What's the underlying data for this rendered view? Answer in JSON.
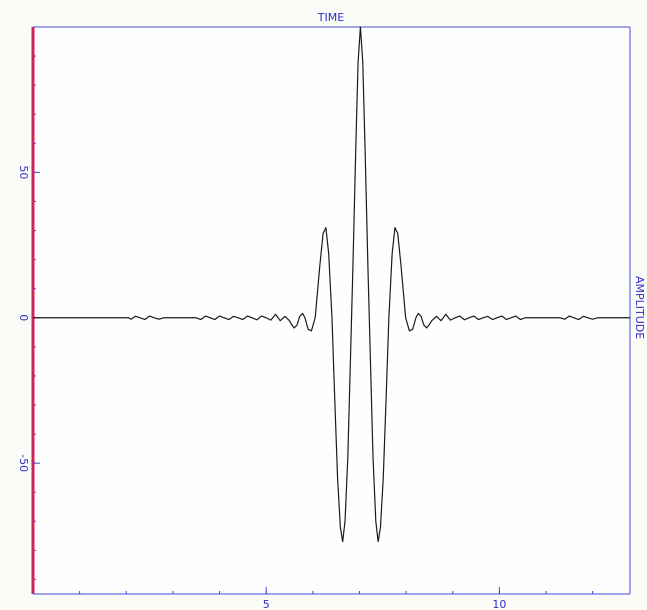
{
  "colors": {
    "page_bg": "#fbfbf7",
    "plot_bg": "#fefefe",
    "frame": "#4848d8",
    "axis_text": "#2f2fc8",
    "left_axis": "#d0215a",
    "trace": "#1a1a1a"
  },
  "chart_data": {
    "type": "line",
    "title": "TIME",
    "ylabel": "AMPLITUDE",
    "xlim": [
      0.0,
      12.8
    ],
    "ylim": [
      -95,
      100
    ],
    "x_ticks": [
      {
        "value": 5,
        "label": "5"
      },
      {
        "value": 10,
        "label": "10"
      }
    ],
    "y_ticks": [
      {
        "value": 50,
        "label": "50"
      },
      {
        "value": 0,
        "label": "0"
      },
      {
        "value": -50,
        "label": "-50"
      }
    ],
    "grid": false,
    "series": [
      {
        "points": [
          [
            0.0,
            0
          ],
          [
            2.05,
            0
          ],
          [
            2.1,
            -0.5
          ],
          [
            2.2,
            0.5
          ],
          [
            2.3,
            0
          ],
          [
            2.4,
            -0.6
          ],
          [
            2.5,
            0.6
          ],
          [
            2.6,
            0
          ],
          [
            2.7,
            -0.5
          ],
          [
            2.8,
            0
          ],
          [
            3.5,
            0
          ],
          [
            3.6,
            -0.6
          ],
          [
            3.7,
            0.6
          ],
          [
            3.8,
            0
          ],
          [
            3.9,
            -0.6
          ],
          [
            4.0,
            0.6
          ],
          [
            4.1,
            0
          ],
          [
            4.2,
            -0.6
          ],
          [
            4.3,
            0.5
          ],
          [
            4.4,
            0
          ],
          [
            4.5,
            -0.6
          ],
          [
            4.6,
            0.6
          ],
          [
            4.7,
            0
          ],
          [
            4.8,
            -0.7
          ],
          [
            4.9,
            0.6
          ],
          [
            5.0,
            0
          ],
          [
            5.1,
            -0.8
          ],
          [
            5.2,
            1.2
          ],
          [
            5.3,
            -1
          ],
          [
            5.4,
            0.5
          ],
          [
            5.5,
            -1
          ],
          [
            5.55,
            -2.5
          ],
          [
            5.6,
            -3.5
          ],
          [
            5.66,
            -2.5
          ],
          [
            5.72,
            0.5
          ],
          [
            5.78,
            1.5
          ],
          [
            5.83,
            0
          ],
          [
            5.9,
            -4
          ],
          [
            5.97,
            -4.5
          ],
          [
            6.05,
            0
          ],
          [
            6.15,
            18
          ],
          [
            6.22,
            29
          ],
          [
            6.28,
            31
          ],
          [
            6.34,
            22
          ],
          [
            6.41,
            0
          ],
          [
            6.47,
            -28
          ],
          [
            6.53,
            -55
          ],
          [
            6.59,
            -72
          ],
          [
            6.64,
            -77
          ],
          [
            6.69,
            -70
          ],
          [
            6.75,
            -48
          ],
          [
            6.8,
            -18
          ],
          [
            6.86,
            18
          ],
          [
            6.92,
            58
          ],
          [
            6.97,
            88
          ],
          [
            7.02,
            100
          ],
          [
            7.07,
            88
          ],
          [
            7.12,
            58
          ],
          [
            7.18,
            18
          ],
          [
            7.24,
            -18
          ],
          [
            7.29,
            -48
          ],
          [
            7.35,
            -70
          ],
          [
            7.4,
            -77
          ],
          [
            7.45,
            -72
          ],
          [
            7.51,
            -55
          ],
          [
            7.57,
            -28
          ],
          [
            7.63,
            0
          ],
          [
            7.7,
            22
          ],
          [
            7.76,
            31
          ],
          [
            7.82,
            29
          ],
          [
            7.89,
            18
          ],
          [
            7.99,
            0
          ],
          [
            8.07,
            -4.5
          ],
          [
            8.14,
            -4
          ],
          [
            8.21,
            0
          ],
          [
            8.26,
            1.5
          ],
          [
            8.32,
            0.5
          ],
          [
            8.38,
            -2.5
          ],
          [
            8.44,
            -3.5
          ],
          [
            8.49,
            -2.5
          ],
          [
            8.55,
            -1
          ],
          [
            8.65,
            0.5
          ],
          [
            8.75,
            -1
          ],
          [
            8.85,
            1.2
          ],
          [
            8.95,
            -0.8
          ],
          [
            9.05,
            0
          ],
          [
            9.15,
            0.6
          ],
          [
            9.25,
            -0.7
          ],
          [
            9.35,
            0
          ],
          [
            9.45,
            0.6
          ],
          [
            9.55,
            -0.6
          ],
          [
            9.65,
            0
          ],
          [
            9.75,
            0.5
          ],
          [
            9.85,
            -0.6
          ],
          [
            9.95,
            0
          ],
          [
            10.05,
            0.6
          ],
          [
            10.15,
            -0.6
          ],
          [
            10.25,
            0
          ],
          [
            10.35,
            0.6
          ],
          [
            10.45,
            -0.6
          ],
          [
            10.55,
            0
          ],
          [
            11.3,
            0
          ],
          [
            11.4,
            -0.5
          ],
          [
            11.5,
            0.6
          ],
          [
            11.6,
            0
          ],
          [
            11.7,
            -0.6
          ],
          [
            11.8,
            0.5
          ],
          [
            11.9,
            0
          ],
          [
            12.0,
            -0.5
          ],
          [
            12.1,
            0
          ],
          [
            12.8,
            0
          ]
        ]
      }
    ]
  }
}
